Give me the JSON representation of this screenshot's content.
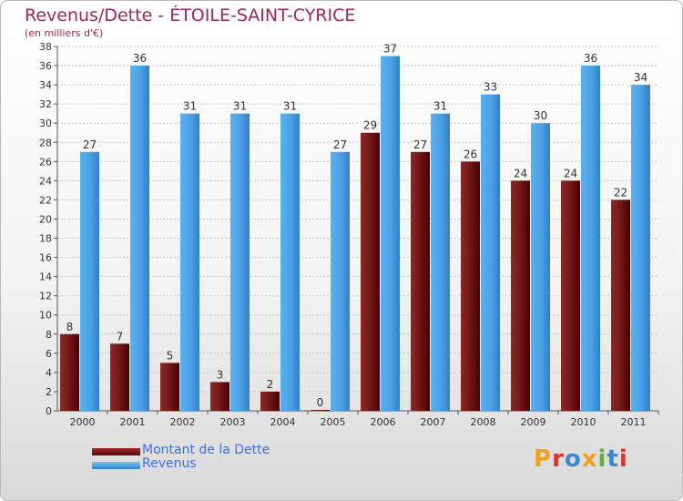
{
  "title": "Revenus/Dette - ÉTOILE-SAINT-CYRICE",
  "subtitle": "(en milliers d'€)",
  "logo_text": "Proxiti",
  "colors": {
    "dette": "#7a1a1a",
    "revenus": "#4da3e6",
    "title": "#a3245a",
    "legend_text": "#3c6ee6",
    "logo": [
      "#f0a020",
      "#e03030",
      "#3a8ad0",
      "#f0a020",
      "#60b040",
      "#3a8ad0",
      "#e03030"
    ]
  },
  "legend": [
    {
      "label": "Montant de la Dette",
      "color": "#7a1a1a"
    },
    {
      "label": "Revenus",
      "color": "#4da3e6"
    }
  ],
  "chart_data": {
    "type": "bar",
    "title": "Revenus/Dette - ÉTOILE-SAINT-CYRICE",
    "subtitle": "(en milliers d'€)",
    "xlabel": "",
    "ylabel": "",
    "categories": [
      "2000",
      "2001",
      "2002",
      "2003",
      "2004",
      "2005",
      "2006",
      "2007",
      "2008",
      "2009",
      "2010",
      "2011"
    ],
    "series": [
      {
        "name": "Montant de la Dette",
        "values": [
          8,
          7,
          5,
          3,
          2,
          0,
          29,
          27,
          26,
          24,
          24,
          22
        ]
      },
      {
        "name": "Revenus",
        "values": [
          27,
          36,
          31,
          31,
          31,
          27,
          37,
          31,
          33,
          30,
          36,
          34
        ]
      }
    ],
    "ylim": [
      0,
      38
    ],
    "yticks": [
      0,
      2,
      4,
      6,
      8,
      10,
      12,
      14,
      16,
      18,
      20,
      22,
      24,
      26,
      28,
      30,
      32,
      34,
      36,
      38
    ],
    "grid": true,
    "legend_position": "bottom-left"
  }
}
